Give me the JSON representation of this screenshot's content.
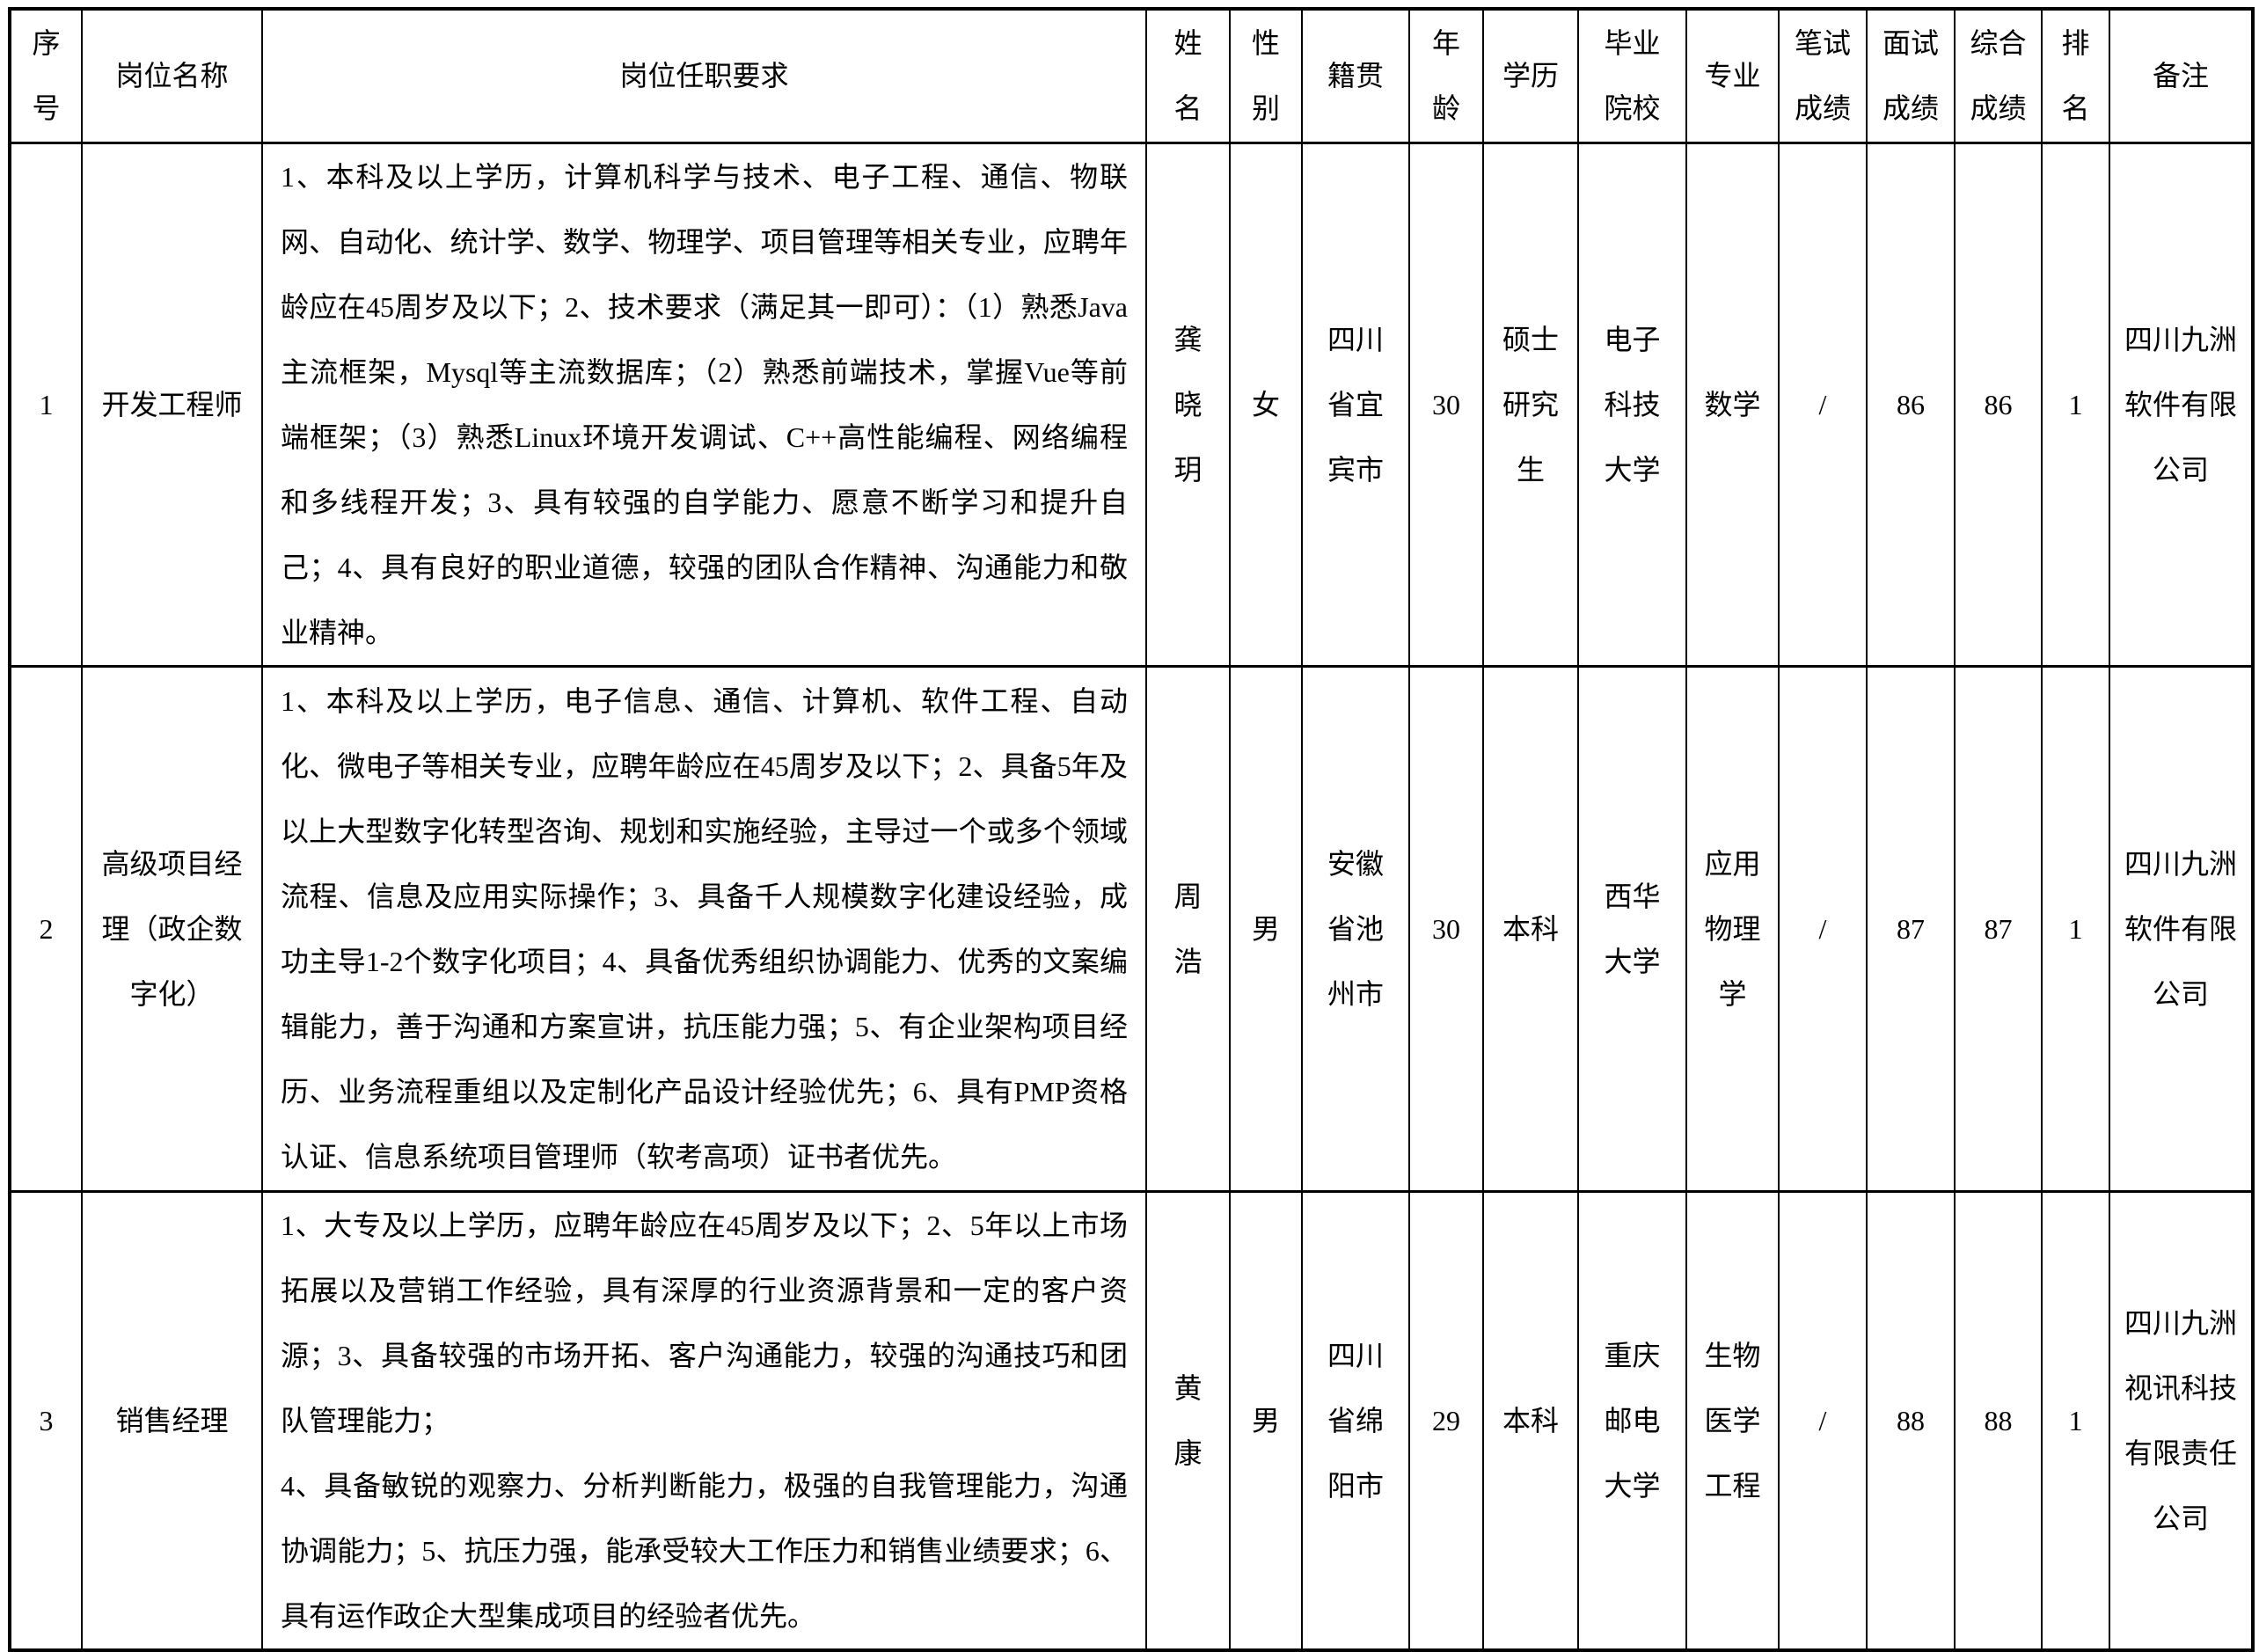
{
  "colors": {
    "text": "#000000",
    "border": "#000000",
    "background": "#ffffff"
  },
  "table": {
    "headers": [
      "序号",
      "岗位名称",
      "岗位任职要求",
      "姓名",
      "性别",
      "籍贯",
      "年龄",
      "学历",
      "毕业院校",
      "专业",
      "笔试成绩",
      "面试成绩",
      "综合成绩",
      "排名",
      "备注"
    ],
    "rows": [
      {
        "index": "1",
        "position": "开发工程师",
        "requirements": [
          "1、本科及以上学历，计算机科学与技术、电子工程、通信、物联网、自动化、统计学、数学、物理学、项目管理等相关专业，应聘年龄应在45周岁及以下；2、技术要求（满足其一即可）：（1）熟悉Java主流框架，Mysql等主流数据库；（2）熟悉前端技术，掌握Vue等前端框架；（3）熟悉Linux环境开发调试、C++高性能编程、网络编程和多线程开发；3、具有较强的自学能力、愿意不断学习和提升自己；4、具有良好的职业道德，较强的团队合作精神、沟通能力和敬业精神。"
        ],
        "name": "龚晓玥",
        "gender": "女",
        "hometown": "四川省宜宾市",
        "age": "30",
        "education": "硕士研究生",
        "school": "电子科技大学",
        "major": "数学",
        "written_score": "/",
        "interview_score": "86",
        "overall_score": "86",
        "rank": "1",
        "remark": "四川九洲软件有限公司"
      },
      {
        "index": "2",
        "position": "高级项目经理（政企数字化）",
        "requirements": [
          "1、本科及以上学历，电子信息、通信、计算机、软件工程、自动化、微电子等相关专业，应聘年龄应在45周岁及以下；2、具备5年及以上大型数字化转型咨询、规划和实施经验，主导过一个或多个领域流程、信息及应用实际操作；3、具备千人规模数字化建设经验，成功主导1-2个数字化项目；4、具备优秀组织协调能力、优秀的文案编辑能力，善于沟通和方案宣讲，抗压能力强；5、有企业架构项目经历、业务流程重组以及定制化产品设计经验优先；6、具有PMP资格认证、信息系统项目管理师（软考高项）证书者优先。"
        ],
        "name": "周浩",
        "gender": "男",
        "hometown": "安徽省池州市",
        "age": "30",
        "education": "本科",
        "school": "西华大学",
        "major": "应用物理学",
        "written_score": "/",
        "interview_score": "87",
        "overall_score": "87",
        "rank": "1",
        "remark": "四川九洲软件有限公司"
      },
      {
        "index": "3",
        "position": "销售经理",
        "requirements": [
          "1、大专及以上学历，应聘年龄应在45周岁及以下；2、5年以上市场拓展以及营销工作经验，具有深厚的行业资源背景和一定的客户资源；3、具备较强的市场开拓、客户沟通能力，较强的沟通技巧和团队管理能力；",
          "4、具备敏锐的观察力、分析判断能力，极强的自我管理能力，沟通协调能力；5、抗压力强，能承受较大工作压力和销售业绩要求；6、具有运作政企大型集成项目的经验者优先。"
        ],
        "name": "黄康",
        "gender": "男",
        "hometown": "四川省绵阳市",
        "age": "29",
        "education": "本科",
        "school": "重庆邮电大学",
        "major": "生物医学工程",
        "written_score": "/",
        "interview_score": "88",
        "overall_score": "88",
        "rank": "1",
        "remark": "四川九洲视讯科技有限责任公司"
      }
    ]
  }
}
